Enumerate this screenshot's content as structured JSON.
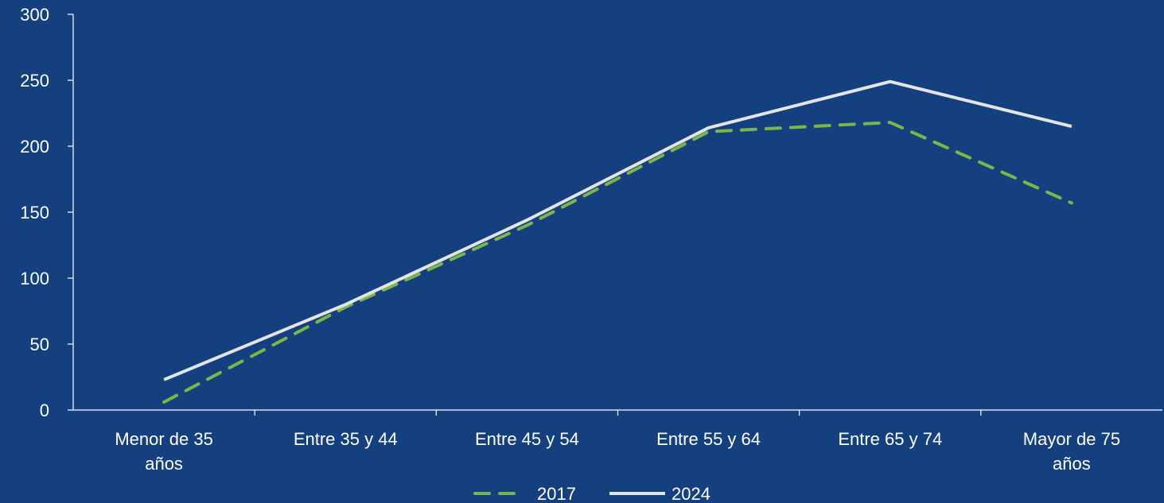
{
  "page": {
    "background": "#15407f"
  },
  "chart_data": {
    "type": "line",
    "categories": [
      [
        "Menor de 35",
        "años"
      ],
      [
        "Entre 35 y 44"
      ],
      [
        "Entre 45 y 54"
      ],
      [
        "Entre 55 y 64"
      ],
      [
        "Entre 65 y 74"
      ],
      [
        "Mayor de 75",
        "años"
      ]
    ],
    "ylim": [
      0,
      300
    ],
    "yticks": [
      0,
      50,
      100,
      150,
      200,
      250,
      300
    ],
    "grid": false,
    "legend_position": "bottom-center",
    "series": [
      {
        "name": "2017",
        "values": [
          6,
          78,
          140,
          211,
          218,
          157
        ],
        "color": "#7ab648",
        "style": "dashed"
      },
      {
        "name": "2024",
        "values": [
          23,
          80,
          144,
          214,
          249,
          215
        ],
        "color": "#e4e4e4",
        "style": "solid"
      }
    ],
    "colors": {
      "axis": "#ffffff",
      "text": "#ffffff"
    }
  }
}
